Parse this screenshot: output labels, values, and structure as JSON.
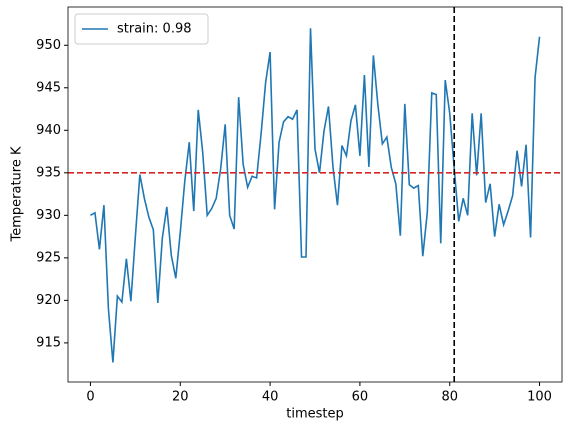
{
  "chart_data": {
    "type": "line",
    "x_label": "timestep",
    "y_label": "Temperature K",
    "x": [
      0,
      1,
      2,
      3,
      4,
      5,
      6,
      7,
      8,
      9,
      10,
      11,
      12,
      13,
      14,
      15,
      16,
      17,
      18,
      19,
      20,
      21,
      22,
      23,
      24,
      25,
      26,
      27,
      28,
      29,
      30,
      31,
      32,
      33,
      34,
      35,
      36,
      37,
      38,
      39,
      40,
      41,
      42,
      43,
      44,
      45,
      46,
      47,
      48,
      49,
      50,
      51,
      52,
      53,
      54,
      55,
      56,
      57,
      58,
      59,
      60,
      61,
      62,
      63,
      64,
      65,
      66,
      67,
      68,
      69,
      70,
      71,
      72,
      73,
      74,
      75,
      76,
      77,
      78,
      79,
      80,
      81,
      82,
      83,
      84,
      85,
      86,
      87,
      88,
      89,
      90,
      91,
      92,
      93,
      94,
      95,
      96,
      97,
      98,
      99,
      100
    ],
    "series": [
      {
        "name": "strain: 0.98",
        "color": "#1f77b4",
        "values": [
          930,
          930.3,
          926,
          931.2,
          919,
          912.7,
          920.5,
          919.8,
          924.9,
          919.9,
          927.5,
          934.8,
          932,
          929.8,
          928.3,
          919.7,
          927.3,
          931,
          925.3,
          922.6,
          928,
          934,
          938.6,
          930.5,
          942.4,
          937.4,
          930,
          930.8,
          932,
          935.5,
          940.7,
          930,
          928.4,
          943.9,
          936,
          933.3,
          934.6,
          934.4,
          939.6,
          945.6,
          949.2,
          930.7,
          938.6,
          941,
          941.6,
          941.3,
          942.4,
          925.1,
          925.1,
          952,
          937.8,
          935,
          939.9,
          942.8,
          935.7,
          931.2,
          938.2,
          937,
          941.1,
          943,
          937,
          946.5,
          935.7,
          948.8,
          943,
          938.4,
          939.2,
          935.6,
          933.7,
          927.6,
          943.1,
          933.6,
          933.2,
          933.5,
          925.2,
          930.3,
          944.4,
          944.2,
          926.7,
          945.9,
          942,
          935.5,
          929.3,
          932,
          930,
          942,
          934.7,
          942,
          931.5,
          933.7,
          927.5,
          931.3,
          928.9,
          930.5,
          932.3,
          937.6,
          933.4,
          938.3,
          927.4,
          946.2,
          951
        ]
      }
    ],
    "hline": {
      "value": 935,
      "color": "#d62728"
    },
    "vline": {
      "value": 81,
      "color": "#000000"
    },
    "xlim": [
      -5,
      105
    ],
    "ylim": [
      910.4,
      954.5
    ],
    "xticks": [
      0,
      20,
      40,
      60,
      80,
      100
    ],
    "yticks": [
      915,
      920,
      925,
      930,
      935,
      940,
      945,
      950
    ],
    "legend": "upper left"
  }
}
